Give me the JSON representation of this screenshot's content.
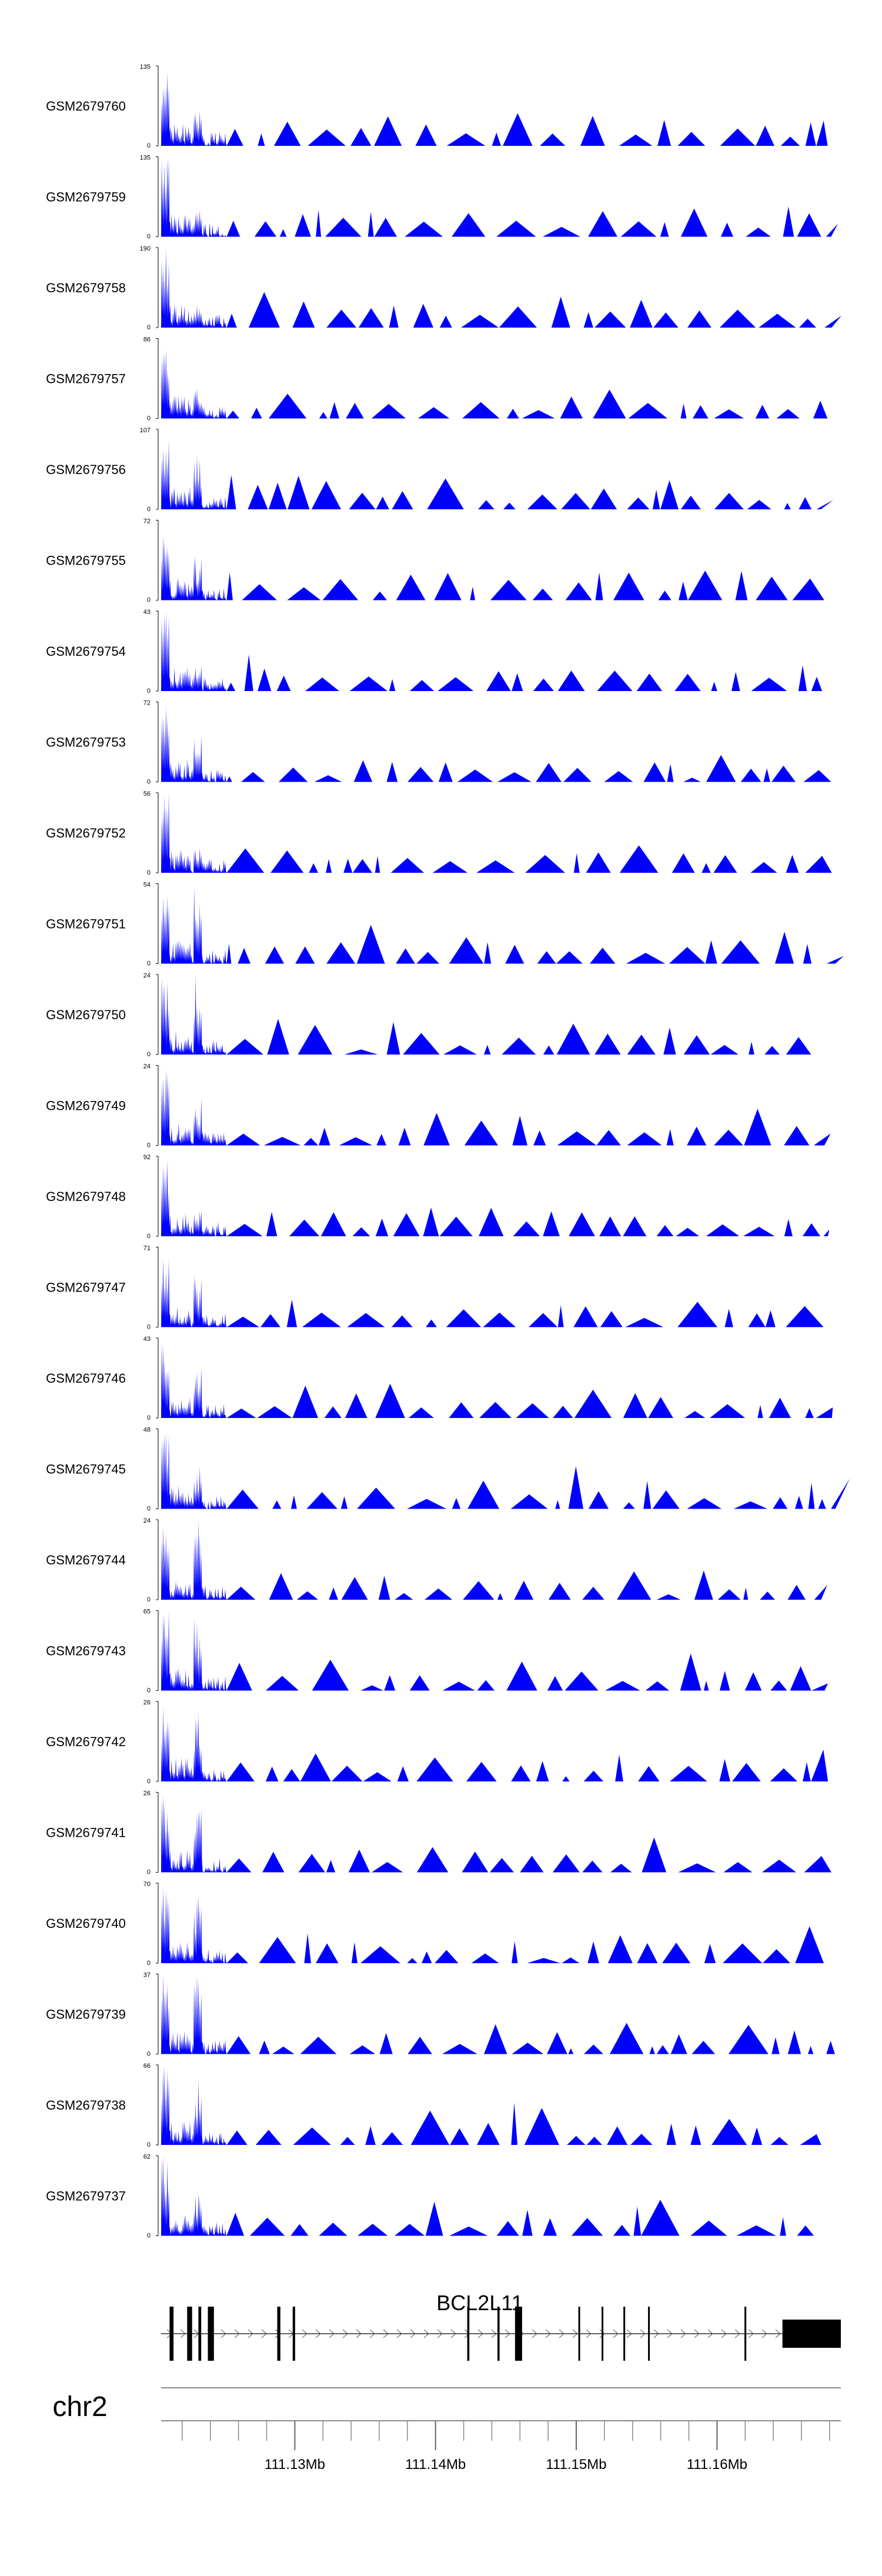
{
  "chart_data": {
    "type": "area",
    "region": {
      "start": 111120500,
      "end": 111168800
    },
    "colors": {
      "signal": "#0000ff",
      "gene": "#000000",
      "axis": "#000000"
    },
    "tracks": [
      {
        "name": "GSM2679760",
        "ymax": 135,
        "ymin": 0,
        "seed": 60,
        "peak_scale": 0.45
      },
      {
        "name": "GSM2679759",
        "ymax": 135,
        "ymin": 0,
        "seed": 59,
        "peak_scale": 0.4
      },
      {
        "name": "GSM2679758",
        "ymax": 190,
        "ymin": 0,
        "seed": 58,
        "peak_scale": 0.35
      },
      {
        "name": "GSM2679757",
        "ymax": 86,
        "ymin": 0,
        "seed": 57,
        "peak_scale": 0.45
      },
      {
        "name": "GSM2679756",
        "ymax": 107,
        "ymin": 0,
        "seed": 56,
        "peak_scale": 0.7
      },
      {
        "name": "GSM2679755",
        "ymax": 72,
        "ymin": 0,
        "seed": 55,
        "peak_scale": 0.55
      },
      {
        "name": "GSM2679754",
        "ymax": 43,
        "ymin": 0,
        "seed": 54,
        "peak_scale": 0.4
      },
      {
        "name": "GSM2679753",
        "ymax": 72,
        "ymin": 0,
        "seed": 53,
        "peak_scale": 0.8
      },
      {
        "name": "GSM2679752",
        "ymax": 56,
        "ymin": 0,
        "seed": 52,
        "peak_scale": 0.35
      },
      {
        "name": "GSM2679751",
        "ymax": 54,
        "ymin": 0,
        "seed": 51,
        "peak_scale": 1.0
      },
      {
        "name": "GSM2679750",
        "ymax": 24,
        "ymin": 0,
        "seed": 50,
        "peak_scale": 1.0
      },
      {
        "name": "GSM2679749",
        "ymax": 24,
        "ymin": 0,
        "seed": 49,
        "peak_scale": 0.6
      },
      {
        "name": "GSM2679748",
        "ymax": 92,
        "ymin": 0,
        "seed": 48,
        "peak_scale": 0.35
      },
      {
        "name": "GSM2679747",
        "ymax": 71,
        "ymin": 0,
        "seed": 47,
        "peak_scale": 0.7
      },
      {
        "name": "GSM2679746",
        "ymax": 43,
        "ymin": 0,
        "seed": 46,
        "peak_scale": 0.8
      },
      {
        "name": "GSM2679745",
        "ymax": 48,
        "ymin": 0,
        "seed": 45,
        "peak_scale": 0.55
      },
      {
        "name": "GSM2679744",
        "ymax": 24,
        "ymin": 0,
        "seed": 44,
        "peak_scale": 1.0
      },
      {
        "name": "GSM2679743",
        "ymax": 65,
        "ymin": 0,
        "seed": 43,
        "peak_scale": 1.0
      },
      {
        "name": "GSM2679742",
        "ymax": 26,
        "ymin": 0,
        "seed": 42,
        "peak_scale": 0.9
      },
      {
        "name": "GSM2679741",
        "ymax": 26,
        "ymin": 0,
        "seed": 41,
        "peak_scale": 0.8
      },
      {
        "name": "GSM2679740",
        "ymax": 70,
        "ymin": 0,
        "seed": 40,
        "peak_scale": 0.85
      },
      {
        "name": "GSM2679739",
        "ymax": 37,
        "ymin": 0,
        "seed": 39,
        "peak_scale": 1.0
      },
      {
        "name": "GSM2679738",
        "ymax": 66,
        "ymin": 0,
        "seed": 38,
        "peak_scale": 0.85
      },
      {
        "name": "GSM2679737",
        "ymax": 62,
        "ymin": 0,
        "seed": 37,
        "peak_scale": 0.55
      }
    ],
    "gene": {
      "name": "BCL2L11",
      "strand": "+",
      "start": 111120500,
      "end": 111168800,
      "exons": [
        {
          "start": 111121100,
          "end": 111121380
        },
        {
          "start": 111122350,
          "end": 111122700
        },
        {
          "start": 111123150,
          "end": 111123350
        },
        {
          "start": 111123820,
          "end": 111124250
        },
        {
          "start": 111128750,
          "end": 111128970
        },
        {
          "start": 111129850,
          "end": 111130020
        },
        {
          "start": 111142250,
          "end": 111142400
        },
        {
          "start": 111144400,
          "end": 111144550
        },
        {
          "start": 111145650,
          "end": 111146150
        },
        {
          "start": 111150150,
          "end": 111150270
        },
        {
          "start": 111151800,
          "end": 111151920
        },
        {
          "start": 111153350,
          "end": 111153470
        },
        {
          "start": 111155100,
          "end": 111155220
        },
        {
          "start": 111161950,
          "end": 111162080
        },
        {
          "start": 111164650,
          "end": 111168800
        }
      ]
    },
    "axis": {
      "chromosome": "chr2",
      "labeled_ticks": [
        {
          "pos": 111130000,
          "label": "111.13Mb"
        },
        {
          "pos": 111140000,
          "label": "111.14Mb"
        },
        {
          "pos": 111150000,
          "label": "111.15Mb"
        },
        {
          "pos": 111160000,
          "label": "111.16Mb"
        }
      ],
      "minor_tick_step": 2000
    }
  }
}
